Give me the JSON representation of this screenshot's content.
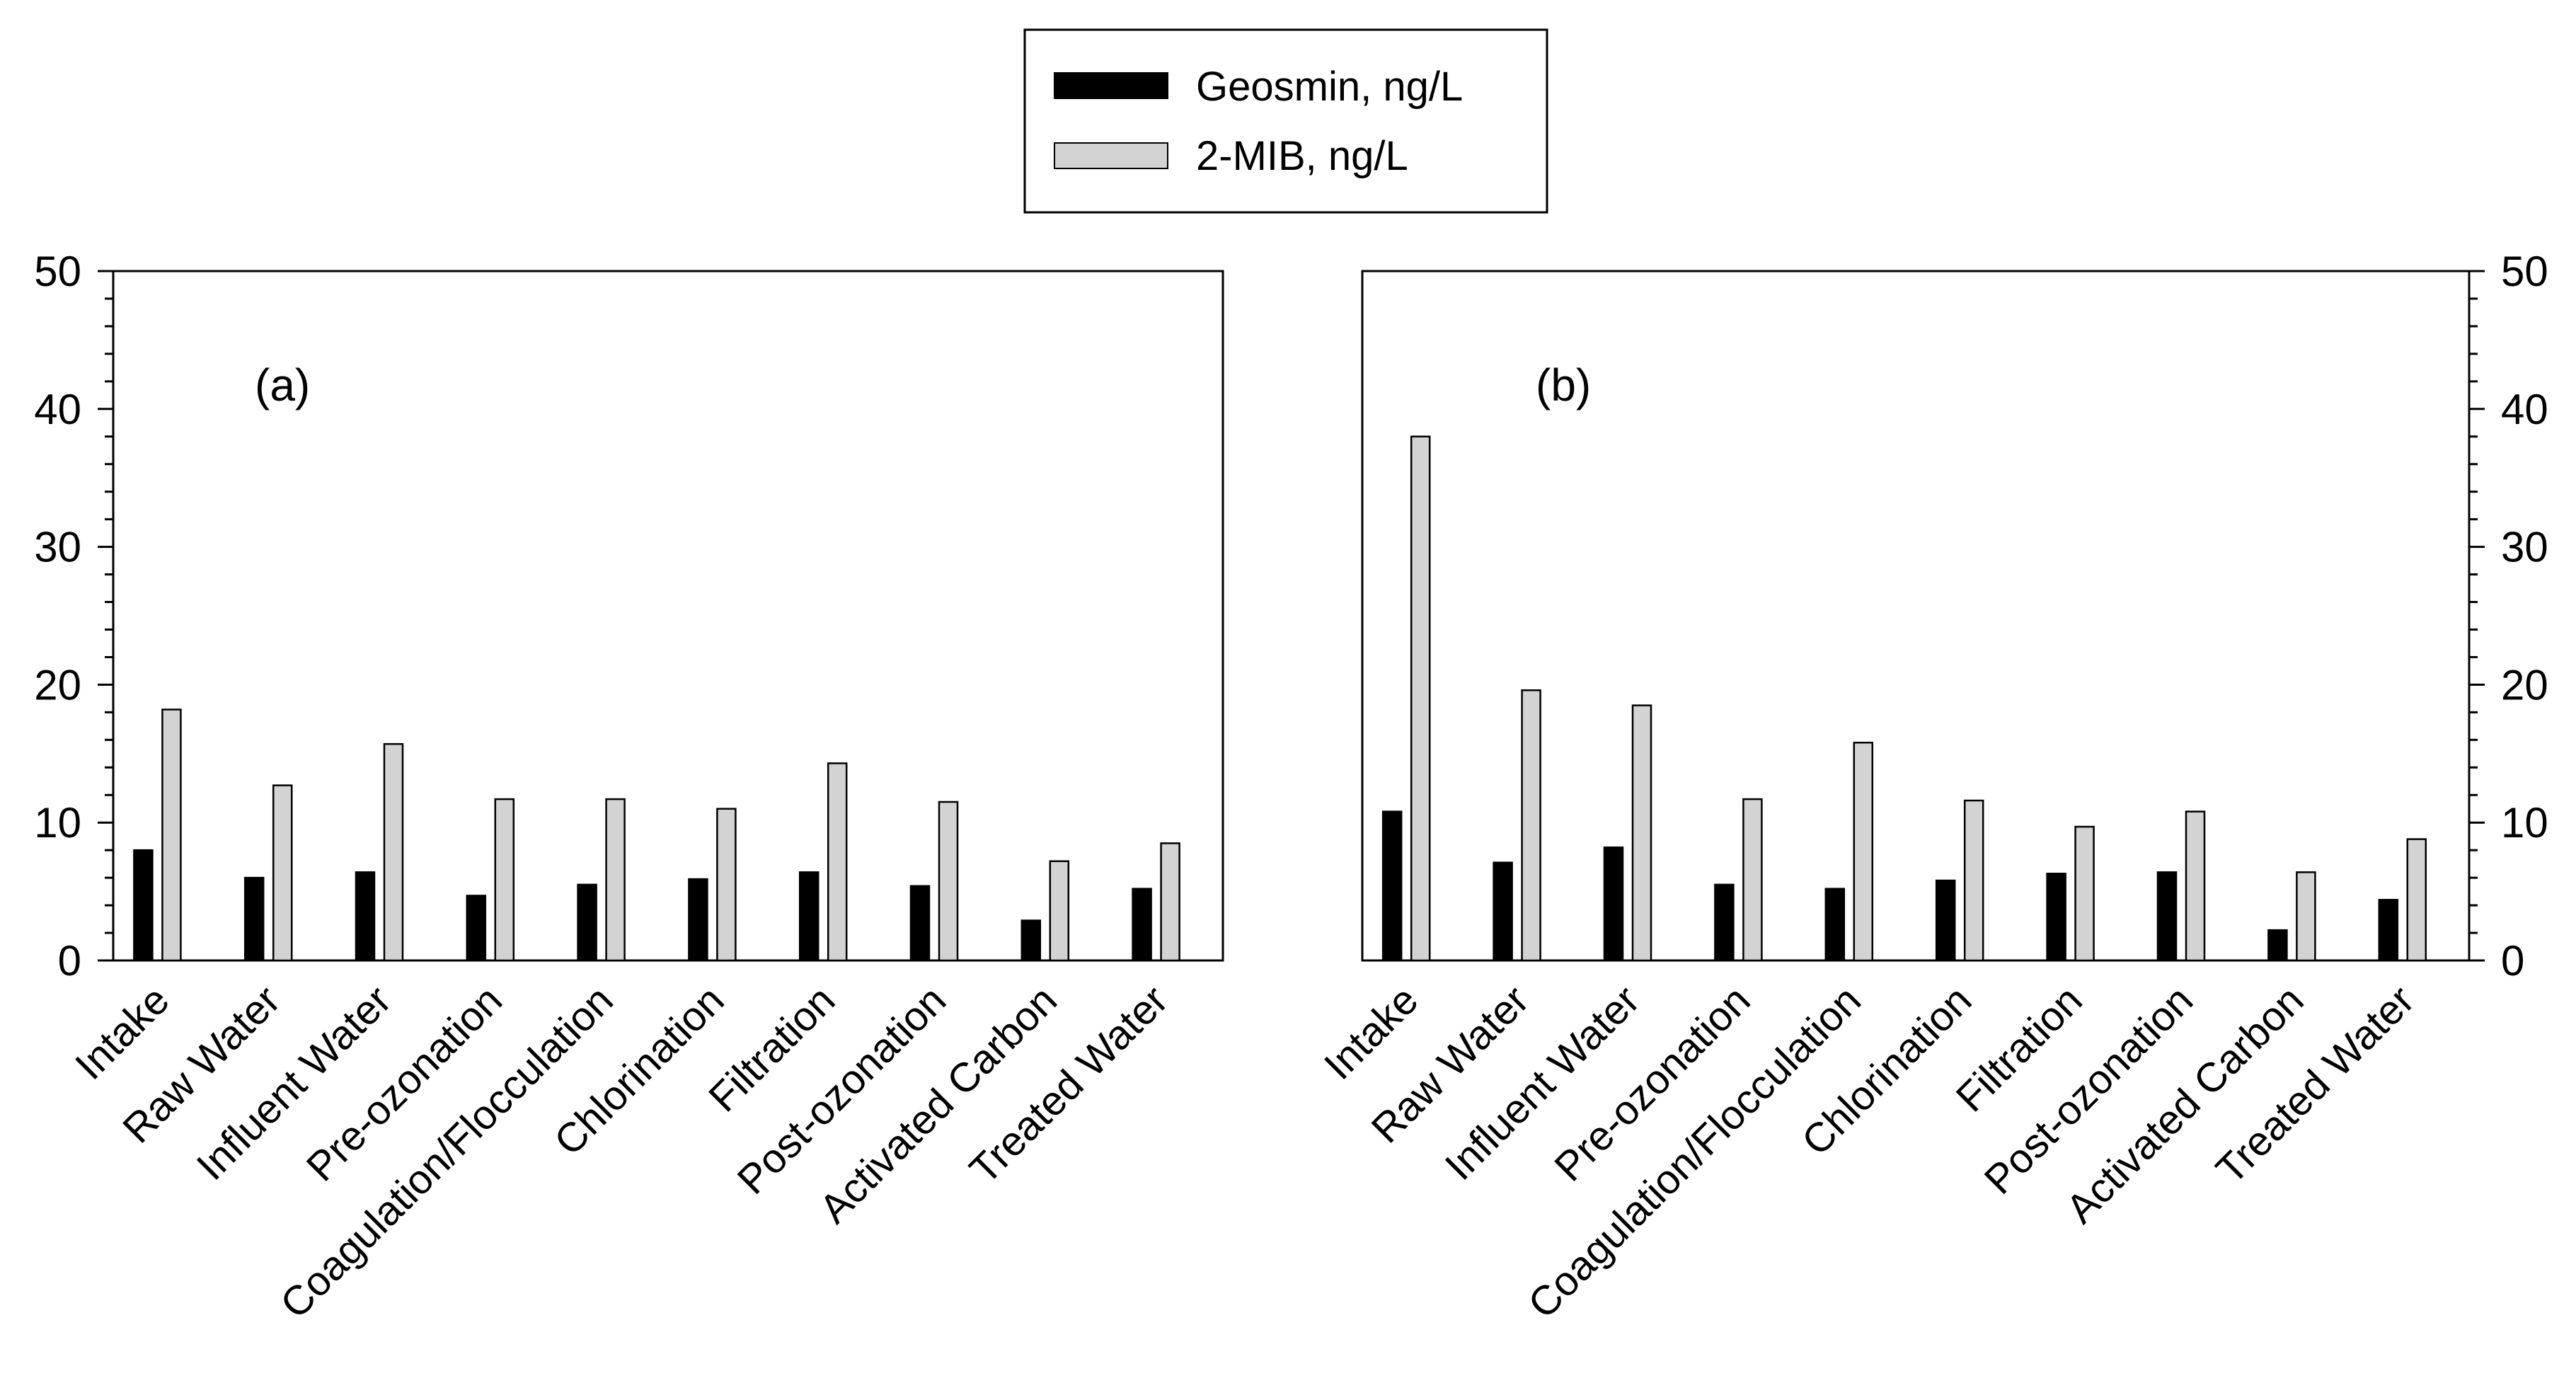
{
  "legend": {
    "items": [
      {
        "label": "Geosmin, ng/L",
        "color": "#000000"
      },
      {
        "label": "2-MIB, ng/L",
        "color": "#d3d3d3"
      }
    ]
  },
  "chart_data": [
    {
      "type": "bar",
      "panel_label": "(a)",
      "y_axis_side": "left",
      "categories": [
        "Intake",
        "Raw Water",
        "Influent Water",
        "Pre-ozonation",
        "Coagulation/Flocculation",
        "Chlorination",
        "Filtration",
        "Post-ozonation",
        "Activated Carbon",
        "Treated Water"
      ],
      "series": [
        {
          "name": "Geosmin, ng/L",
          "color": "#000000",
          "values": [
            8.0,
            6.0,
            6.4,
            4.7,
            5.5,
            5.9,
            6.4,
            5.4,
            2.9,
            5.2
          ]
        },
        {
          "name": "2-MIB, ng/L",
          "color": "#d3d3d3",
          "values": [
            18.2,
            12.7,
            15.7,
            11.7,
            11.7,
            11.0,
            14.3,
            11.5,
            7.2,
            8.5
          ]
        }
      ],
      "ylim": [
        0,
        50
      ],
      "yticks": [
        "0",
        "10",
        "20",
        "30",
        "40",
        "50"
      ],
      "xlabel": "",
      "ylabel": "",
      "title": ""
    },
    {
      "type": "bar",
      "panel_label": "(b)",
      "y_axis_side": "right",
      "categories": [
        "Intake",
        "Raw Water",
        "Influent Water",
        "Pre-ozonation",
        "Coagulation/Flocculation",
        "Chlorination",
        "Filtration",
        "Post-ozonation",
        "Activated Carbon",
        "Treated Water"
      ],
      "series": [
        {
          "name": "Geosmin, ng/L",
          "color": "#000000",
          "values": [
            10.8,
            7.1,
            8.2,
            5.5,
            5.2,
            5.8,
            6.3,
            6.4,
            2.2,
            4.4
          ]
        },
        {
          "name": "2-MIB, ng/L",
          "color": "#d3d3d3",
          "values": [
            38.0,
            19.6,
            18.5,
            11.7,
            15.8,
            11.6,
            9.7,
            10.8,
            6.4,
            8.8
          ]
        }
      ],
      "ylim": [
        0,
        50
      ],
      "yticks": [
        "0",
        "10",
        "20",
        "30",
        "40",
        "50"
      ],
      "xlabel": "",
      "ylabel": "",
      "title": ""
    }
  ]
}
